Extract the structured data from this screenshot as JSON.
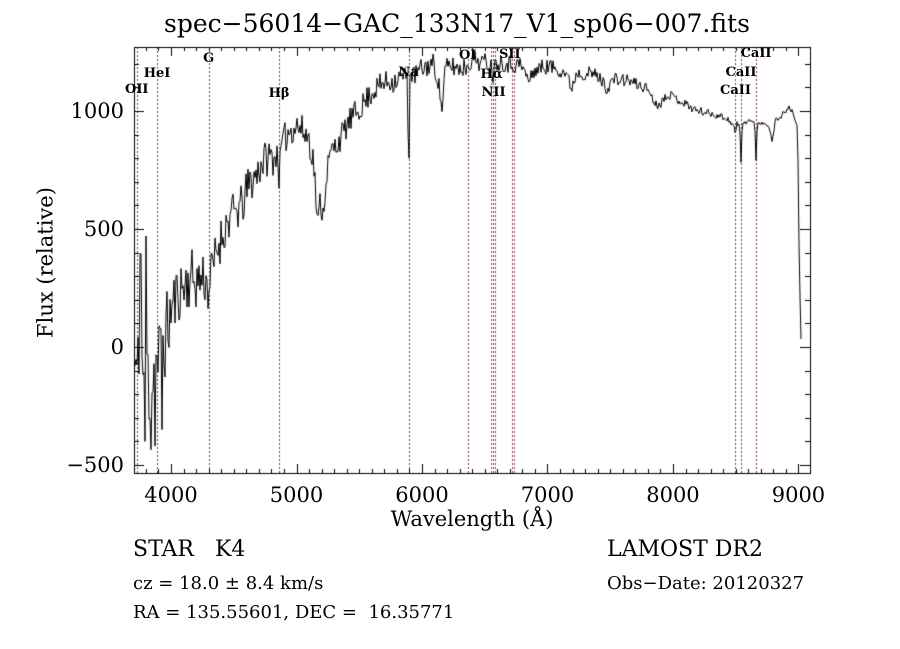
{
  "title": "spec−56014−GAC_133N17_V1_sp06−007.fits",
  "annotations": {
    "class_line": "STAR   K4",
    "survey": "LAMOST DR2",
    "cz_line": "cz = 18.0 ± 8.4 km/s",
    "obs_date": "Obs−Date: 20120327",
    "radec_line": "RA = 135.55601, DEC =  16.35771"
  },
  "chart_data": {
    "type": "line",
    "title": "spec−56014−GAC_133N17_V1_sp06−007.fits",
    "xlabel": "Wavelength (Å)",
    "ylabel": "Flux (relative)",
    "xlim": [
      3705,
      9092
    ],
    "ylim": [
      -534,
      1271
    ],
    "x_major_ticks": [
      4000,
      5000,
      6000,
      7000,
      8000,
      9000
    ],
    "x_minor_step": 100,
    "y_major_ticks": [
      -500,
      0,
      500,
      1000
    ],
    "y_tick_labels": [
      "−500",
      "0",
      "500",
      "1000"
    ],
    "y_minor_step": 100,
    "grid": false,
    "legend": "none",
    "spectrum_color": "#000000",
    "line_marker_color": "#8b4049",
    "marked_wavelengths": [
      3727,
      3889,
      4300,
      4861,
      5893,
      6364,
      6548,
      6563,
      6583,
      6716,
      6731,
      8498,
      8542,
      8662
    ],
    "line_labels": [
      {
        "text": "OII",
        "wavelength": 3727,
        "label_y": 83
      },
      {
        "text": "HeI",
        "wavelength": 3889,
        "label_y": 67
      },
      {
        "text": "G",
        "wavelength": 4300,
        "label_y": 52
      },
      {
        "text": "Hβ",
        "wavelength": 4861,
        "label_y": 87
      },
      {
        "text": "Na",
        "wavelength": 5893,
        "label_y": 66
      },
      {
        "text": "OI",
        "wavelength": 6364,
        "label_y": 49
      },
      {
        "text": "Hα",
        "wavelength": 6555,
        "label_y": 68
      },
      {
        "text": "NII",
        "wavelength": 6570,
        "label_y": 86
      },
      {
        "text": "SII",
        "wavelength": 6700,
        "label_y": 48
      },
      {
        "text": "CaII",
        "wavelength": 8498,
        "label_y": 84
      },
      {
        "text": "CaII",
        "wavelength": 8542,
        "label_y": 66
      },
      {
        "text": "CaII",
        "wavelength": 8662,
        "label_y": 47
      }
    ],
    "noise_seed": 11,
    "spikes": [
      [
        3757,
        395
      ],
      [
        3790,
        -400
      ],
      [
        3800,
        470
      ],
      [
        3838,
        -435
      ],
      [
        3874,
        -420
      ],
      [
        3930,
        -350
      ]
    ],
    "series": [
      {
        "name": "spectrum",
        "anchors_format": [
          "wavelength_A",
          "flux_relative",
          "noise_amplitude"
        ],
        "anchors": [
          [
            3705,
            -80,
            250
          ],
          [
            3740,
            -140,
            250
          ],
          [
            3775,
            -90,
            260
          ],
          [
            3810,
            -120,
            260
          ],
          [
            3845,
            -150,
            250
          ],
          [
            3880,
            -80,
            240
          ],
          [
            3910,
            -60,
            220
          ],
          [
            3945,
            20,
            190
          ],
          [
            3980,
            100,
            160
          ],
          [
            4010,
            170,
            140
          ],
          [
            4060,
            235,
            130
          ],
          [
            4110,
            260,
            125
          ],
          [
            4160,
            295,
            125
          ],
          [
            4210,
            275,
            120
          ],
          [
            4260,
            305,
            115
          ],
          [
            4295,
            245,
            110
          ],
          [
            4330,
            330,
            105
          ],
          [
            4370,
            420,
            100
          ],
          [
            4420,
            490,
            95
          ],
          [
            4470,
            550,
            95
          ],
          [
            4520,
            575,
            90
          ],
          [
            4570,
            600,
            90
          ],
          [
            4620,
            690,
            88
          ],
          [
            4670,
            720,
            85
          ],
          [
            4720,
            780,
            82
          ],
          [
            4770,
            805,
            80
          ],
          [
            4820,
            805,
            78
          ],
          [
            4853,
            815,
            60
          ],
          [
            4861,
            700,
            40
          ],
          [
            4875,
            835,
            70
          ],
          [
            4920,
            900,
            70
          ],
          [
            4960,
            925,
            70
          ],
          [
            5000,
            940,
            68
          ],
          [
            5050,
            915,
            66
          ],
          [
            5100,
            885,
            68
          ],
          [
            5140,
            770,
            66
          ],
          [
            5168,
            505,
            50
          ],
          [
            5188,
            620,
            55
          ],
          [
            5212,
            560,
            55
          ],
          [
            5240,
            740,
            58
          ],
          [
            5275,
            825,
            58
          ],
          [
            5320,
            860,
            58
          ],
          [
            5370,
            905,
            56
          ],
          [
            5420,
            955,
            54
          ],
          [
            5470,
            990,
            54
          ],
          [
            5520,
            1020,
            52
          ],
          [
            5570,
            1060,
            52
          ],
          [
            5620,
            1090,
            50
          ],
          [
            5670,
            1110,
            50
          ],
          [
            5720,
            1125,
            50
          ],
          [
            5770,
            1125,
            48
          ],
          [
            5820,
            1140,
            48
          ],
          [
            5865,
            1148,
            42
          ],
          [
            5885,
            1150,
            20
          ],
          [
            5893,
            630,
            10
          ],
          [
            5903,
            1150,
            20
          ],
          [
            5940,
            1150,
            46
          ],
          [
            5990,
            1175,
            46
          ],
          [
            6040,
            1190,
            46
          ],
          [
            6090,
            1200,
            46
          ],
          [
            6130,
            1130,
            40
          ],
          [
            6158,
            1000,
            30
          ],
          [
            6185,
            1180,
            42
          ],
          [
            6240,
            1190,
            44
          ],
          [
            6300,
            1180,
            44
          ],
          [
            6360,
            1190,
            42
          ],
          [
            6400,
            1225,
            42
          ],
          [
            6460,
            1210,
            42
          ],
          [
            6520,
            1205,
            40
          ],
          [
            6556,
            1195,
            25
          ],
          [
            6563,
            1105,
            15
          ],
          [
            6572,
            1195,
            25
          ],
          [
            6620,
            1210,
            40
          ],
          [
            6700,
            1200,
            40
          ],
          [
            6790,
            1195,
            38
          ],
          [
            6855,
            1125,
            28
          ],
          [
            6890,
            1170,
            34
          ],
          [
            6950,
            1185,
            34
          ],
          [
            7010,
            1190,
            34
          ],
          [
            7080,
            1180,
            34
          ],
          [
            7150,
            1160,
            32
          ],
          [
            7190,
            1095,
            26
          ],
          [
            7235,
            1165,
            32
          ],
          [
            7300,
            1160,
            32
          ],
          [
            7380,
            1155,
            30
          ],
          [
            7440,
            1125,
            26
          ],
          [
            7475,
            1090,
            24
          ],
          [
            7520,
            1135,
            28
          ],
          [
            7580,
            1130,
            28
          ],
          [
            7650,
            1130,
            26
          ],
          [
            7720,
            1110,
            26
          ],
          [
            7800,
            1095,
            24
          ],
          [
            7865,
            1025,
            20
          ],
          [
            7905,
            1035,
            20
          ],
          [
            7955,
            1075,
            20
          ],
          [
            8010,
            1058,
            20
          ],
          [
            8070,
            1040,
            20
          ],
          [
            8130,
            1020,
            18
          ],
          [
            8190,
            1002,
            18
          ],
          [
            8250,
            995,
            17
          ],
          [
            8310,
            988,
            16
          ],
          [
            8370,
            980,
            16
          ],
          [
            8430,
            968,
            15
          ],
          [
            8475,
            945,
            12
          ],
          [
            8490,
            928,
            9
          ],
          [
            8498,
            893,
            6
          ],
          [
            8508,
            948,
            9
          ],
          [
            8532,
            938,
            7
          ],
          [
            8542,
            778,
            4
          ],
          [
            8552,
            942,
            8
          ],
          [
            8600,
            962,
            12
          ],
          [
            8652,
            948,
            6
          ],
          [
            8662,
            783,
            4
          ],
          [
            8672,
            948,
            8
          ],
          [
            8710,
            952,
            12
          ],
          [
            8755,
            945,
            11
          ],
          [
            8790,
            875,
            8
          ],
          [
            8815,
            958,
            11
          ],
          [
            8855,
            975,
            12
          ],
          [
            8900,
            1002,
            12
          ],
          [
            8930,
            1012,
            11
          ],
          [
            8960,
            988,
            10
          ],
          [
            8993,
            930,
            8
          ],
          [
            9000,
            640,
            6
          ],
          [
            9004,
            430,
            5
          ],
          [
            9008,
            455,
            5
          ],
          [
            9013,
            180,
            4
          ],
          [
            9018,
            35,
            3
          ],
          [
            9024,
            30,
            2
          ]
        ]
      }
    ]
  }
}
